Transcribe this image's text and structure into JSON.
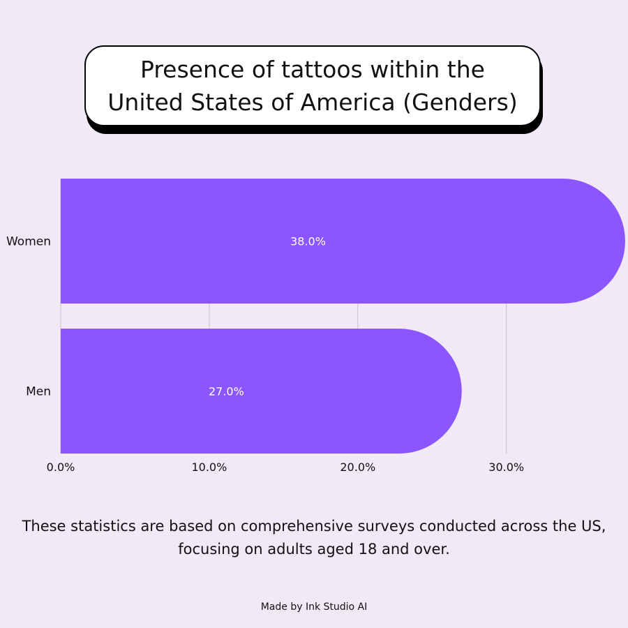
{
  "chart_data": {
    "type": "bar",
    "orientation": "horizontal",
    "title": "Presence of tattoos within the United States of America (Genders)",
    "categories": [
      "Women",
      "Men"
    ],
    "values": [
      38.0,
      27.0
    ],
    "value_labels": [
      "38.0%",
      "27.0%"
    ],
    "x_ticks": [
      0,
      10,
      20,
      30
    ],
    "x_tick_labels": [
      "0.0%",
      "10.0%",
      "20.0%",
      "30.0%"
    ],
    "xlim": [
      0,
      38
    ],
    "grid": true,
    "bar_color": "#8b55ff",
    "grid_color": "#c8c2cc",
    "xlabel": "",
    "ylabel": ""
  },
  "footnote": "These statistics are based on comprehensive surveys conducted across the US, focusing on adults aged 18 and over.",
  "credit": "Made by Ink Studio AI",
  "colors": {
    "background": "#f1e9f6",
    "bar": "#8b55ff",
    "text": "#111111"
  }
}
